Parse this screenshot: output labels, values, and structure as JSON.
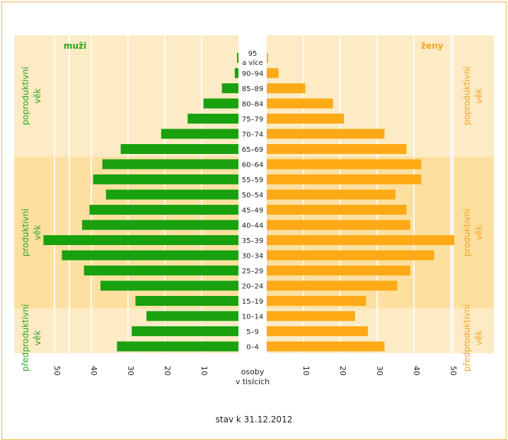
{
  "chart_data": {
    "type": "bar",
    "orientation": "horizontal-population-pyramid",
    "x_unit_label": "osoby\nv tisících",
    "left_series_label": "muži",
    "right_series_label": "ženy",
    "footer": "stav k 31.12.2012",
    "age_groups": [
      "95\na více",
      "90–94",
      "85–89",
      "80–84",
      "75–79",
      "70–74",
      "65–69",
      "60–64",
      "55–59",
      "50–54",
      "45–49",
      "40–44",
      "35–39",
      "30–34",
      "25–29",
      "20–24",
      "15–19",
      "10–14",
      "5–9",
      "0–4"
    ],
    "series": [
      {
        "name": "muži",
        "values": [
          0.3,
          1.0,
          4.5,
          9.5,
          13.8,
          21,
          32,
          37,
          39.5,
          36,
          40.5,
          42.5,
          53,
          48,
          42,
          37.5,
          28,
          25,
          29,
          33
        ]
      },
      {
        "name": "ženy",
        "values": [
          0.3,
          3.2,
          10.5,
          18,
          21,
          32,
          38,
          42,
          42,
          35,
          38,
          39,
          51,
          45.5,
          39,
          35.5,
          27,
          24,
          27.5,
          32
        ]
      }
    ],
    "xlim": [
      0,
      55
    ],
    "x_ticks": [
      "50",
      "40",
      "30",
      "20",
      "10",
      "10",
      "20",
      "30",
      "40",
      "50"
    ],
    "zones": [
      {
        "name": "poproduktivní věk",
        "label": "poproduktivní\nvěk",
        "from_age_index": 0,
        "to_age_index": 6
      },
      {
        "name": "produktivní věk",
        "label": "produktivní\nvěk",
        "from_age_index": 7,
        "to_age_index": 16
      },
      {
        "name": "předproduktivní věk",
        "label": "předproduktivní\nvěk",
        "from_age_index": 17,
        "to_age_index": 19
      }
    ],
    "colors": {
      "male": "#19a10f",
      "female": "#fdaa16",
      "male_text": "#2aa41b",
      "female_text": "#f6a221",
      "zone_light": "#fdebc5",
      "zone_dark": "#fde0a0",
      "frame": "#f5b850",
      "center_label": "#1f1f1f"
    }
  }
}
